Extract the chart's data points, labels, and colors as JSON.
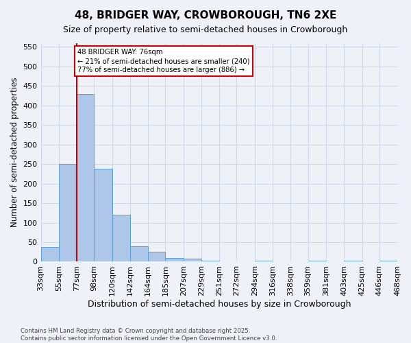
{
  "title": "48, BRIDGER WAY, CROWBOROUGH, TN6 2XE",
  "subtitle": "Size of property relative to semi-detached houses in Crowborough",
  "xlabel": "Distribution of semi-detached houses by size in Crowborough",
  "ylabel": "Number of semi-detached properties",
  "bar_values": [
    38,
    250,
    430,
    238,
    120,
    40,
    25,
    10,
    8,
    3,
    0,
    0,
    3,
    0,
    0,
    3,
    0,
    3,
    0,
    2
  ],
  "bin_edges": [
    33,
    55,
    77,
    98,
    120,
    142,
    164,
    185,
    207,
    229,
    251,
    272,
    294,
    316,
    338,
    359,
    381,
    403,
    425,
    446,
    468
  ],
  "bin_labels": [
    "33sqm",
    "55sqm",
    "77sqm",
    "98sqm",
    "120sqm",
    "142sqm",
    "164sqm",
    "185sqm",
    "207sqm",
    "229sqm",
    "251sqm",
    "272sqm",
    "294sqm",
    "316sqm",
    "338sqm",
    "359sqm",
    "381sqm",
    "403sqm",
    "425sqm",
    "446sqm",
    "468sqm"
  ],
  "bar_color": "#aec6e8",
  "bar_edge_color": "#5a9fd4",
  "vline_x": 77,
  "vline_color": "#cc0000",
  "annotation_text": "48 BRIDGER WAY: 76sqm\n← 21% of semi-detached houses are smaller (240)\n77% of semi-detached houses are larger (886) →",
  "annotation_box_color": "#cc0000",
  "grid_color": "#d0d8e8",
  "background_color": "#eef2f8",
  "footer_text": "Contains HM Land Registry data © Crown copyright and database right 2025.\nContains public sector information licensed under the Open Government Licence v3.0.",
  "ylim": [
    0,
    560
  ],
  "yticks": [
    0,
    50,
    100,
    150,
    200,
    250,
    300,
    350,
    400,
    450,
    500,
    550
  ]
}
